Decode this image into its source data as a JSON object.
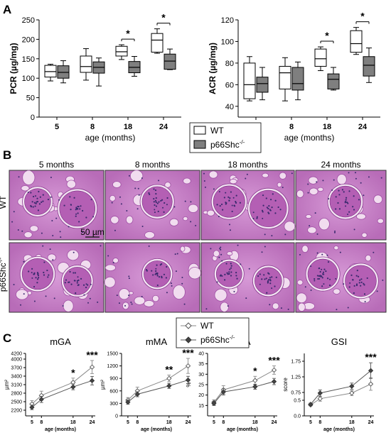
{
  "panels": {
    "a": "A",
    "b": "B",
    "c": "C"
  },
  "legend_a": {
    "wt": "WT",
    "ko": "p66Shc",
    "ko_sup": "-/-"
  },
  "legend_c": {
    "wt": "WT",
    "ko": "p66Shc",
    "ko_sup": "-/-"
  },
  "micrographs": {
    "columns": [
      "5 months",
      "8 months",
      "18 months",
      "24 months"
    ],
    "rows": [
      {
        "label": "WT",
        "sup": ""
      },
      {
        "label": "p66Shc",
        "sup": "-/-"
      }
    ],
    "scale_bar": "50 µm"
  },
  "colors": {
    "wt_fill": "#ffffff",
    "ko_fill": "#7f7f7f",
    "tissue": "#c47cc4",
    "nuclei": "#3a2a6e"
  },
  "chart_data": [
    {
      "type": "box",
      "id": "pcr",
      "ylabel": "PCR (µg/mg)",
      "xlabel": "age (months)",
      "categories": [
        "5",
        "8",
        "18",
        "24"
      ],
      "ylim": [
        0,
        250
      ],
      "yticks": [
        0,
        50,
        100,
        150,
        200,
        250
      ],
      "series": [
        {
          "name": "WT",
          "boxes": [
            {
              "min": 93,
              "q1": 103,
              "median": 117,
              "q3": 133,
              "max": 136
            },
            {
              "min": 95,
              "q1": 115,
              "median": 130,
              "q3": 157,
              "max": 176
            },
            {
              "min": 148,
              "q1": 157,
              "median": 168,
              "q3": 182,
              "max": 186
            },
            {
              "min": 164,
              "q1": 167,
              "median": 198,
              "q3": 215,
              "max": 227
            }
          ]
        },
        {
          "name": "p66Shc-/-",
          "boxes": [
            {
              "min": 88,
              "q1": 100,
              "median": 115,
              "q3": 132,
              "max": 145
            },
            {
              "min": 80,
              "q1": 113,
              "median": 128,
              "q3": 142,
              "max": 152
            },
            {
              "min": 105,
              "q1": 114,
              "median": 128,
              "q3": 143,
              "max": 156
            },
            {
              "min": 122,
              "q1": 123,
              "median": 144,
              "q3": 162,
              "max": 175
            }
          ]
        }
      ],
      "significance": [
        {
          "category": "18",
          "label": "*"
        },
        {
          "category": "24",
          "label": "*"
        }
      ]
    },
    {
      "type": "box",
      "id": "acr",
      "ylabel": "ACR (µg/mg)",
      "xlabel": "age (months)",
      "categories": [
        "5",
        "8",
        "18",
        "24"
      ],
      "ylim": [
        30,
        120
      ],
      "yticks": [
        40,
        60,
        80,
        100,
        120
      ],
      "series": [
        {
          "name": "WT",
          "boxes": [
            {
              "min": 45,
              "q1": 47,
              "median": 60,
              "q3": 80,
              "max": 86
            },
            {
              "min": 45,
              "q1": 56,
              "median": 71,
              "q3": 77,
              "max": 85
            },
            {
              "min": 73,
              "q1": 77,
              "median": 84,
              "q3": 93,
              "max": 95
            },
            {
              "min": 88,
              "q1": 90,
              "median": 98,
              "q3": 110,
              "max": 113
            }
          ]
        },
        {
          "name": "p66Shc-/-",
          "boxes": [
            {
              "min": 46,
              "q1": 53,
              "median": 61,
              "q3": 67,
              "max": 76
            },
            {
              "min": 46,
              "q1": 55,
              "median": 61,
              "q3": 76,
              "max": 81
            },
            {
              "min": 55,
              "q1": 56,
              "median": 65,
              "q3": 70,
              "max": 76
            },
            {
              "min": 62,
              "q1": 68,
              "median": 78,
              "q3": 86,
              "max": 94
            }
          ]
        }
      ],
      "significance": [
        {
          "category": "18",
          "label": "*"
        },
        {
          "category": "24",
          "label": "*"
        }
      ]
    },
    {
      "type": "line",
      "id": "mga",
      "title": "mGA",
      "ylabel": "µm²",
      "xlabel": "age (months)",
      "x": [
        5,
        8,
        18,
        24
      ],
      "xticks": [
        5,
        8,
        18,
        24
      ],
      "ylim": [
        2000,
        4200
      ],
      "yticks": [
        2200,
        2500,
        2800,
        3100,
        3400,
        3700,
        4000,
        4200
      ],
      "series": [
        {
          "name": "WT",
          "values": [
            2420,
            2720,
            3180,
            3720
          ],
          "err": [
            120,
            150,
            150,
            230
          ]
        },
        {
          "name": "p66Shc-/-",
          "values": [
            2300,
            2580,
            3020,
            3240
          ],
          "err": [
            80,
            110,
            100,
            150
          ]
        }
      ],
      "significance": [
        {
          "x": 18,
          "label": "*"
        },
        {
          "x": 24,
          "label": "***"
        }
      ]
    },
    {
      "type": "line",
      "id": "mma",
      "title": "mMA",
      "ylabel": "µm²",
      "xlabel": "age (months)",
      "x": [
        5,
        8,
        18,
        24
      ],
      "xticks": [
        5,
        8,
        18,
        24
      ],
      "ylim": [
        0,
        1500
      ],
      "yticks": [
        0,
        300,
        600,
        900,
        1200,
        1500
      ],
      "series": [
        {
          "name": "WT",
          "values": [
            380,
            600,
            900,
            1200
          ],
          "err": [
            60,
            90,
            80,
            180
          ]
        },
        {
          "name": "p66Shc-/-",
          "values": [
            330,
            520,
            720,
            860
          ],
          "err": [
            50,
            60,
            60,
            90
          ]
        }
      ],
      "significance": [
        {
          "x": 18,
          "label": "**"
        },
        {
          "x": 24,
          "label": "***"
        }
      ]
    },
    {
      "type": "line",
      "id": "fma",
      "title": "fMA",
      "ylabel": "%",
      "xlabel": "age (months)",
      "x": [
        5,
        8,
        18,
        24
      ],
      "xticks": [
        5,
        8,
        18,
        24
      ],
      "ylim": [
        10,
        40
      ],
      "yticks": [
        15,
        20,
        25,
        30,
        35,
        40
      ],
      "series": [
        {
          "name": "WT",
          "values": [
            16.5,
            22.5,
            27,
            32
          ],
          "err": [
            1.2,
            2.0,
            2.0,
            2.0
          ]
        },
        {
          "name": "p66Shc-/-",
          "values": [
            16,
            21.5,
            24,
            26.5
          ],
          "err": [
            1.0,
            1.5,
            1.2,
            1.5
          ]
        }
      ],
      "significance": [
        {
          "x": 18,
          "label": "*"
        },
        {
          "x": 24,
          "label": "***"
        }
      ]
    },
    {
      "type": "line",
      "id": "gsi",
      "title": "GSI",
      "ylabel": "score",
      "xlabel": "age (months)",
      "x": [
        5,
        8,
        18,
        24
      ],
      "xticks": [
        5,
        8,
        18,
        24
      ],
      "ylim": [
        0,
        2.0
      ],
      "yticks": [
        0.0,
        0.5,
        0.75,
        1.25,
        1.75
      ],
      "ytick_labels": [
        "0.0",
        "0.5",
        "0.75",
        "1.25",
        "1.75"
      ],
      "series": [
        {
          "name": "WT",
          "values": [
            0.35,
            0.55,
            0.73,
            1.02
          ],
          "err": [
            0.03,
            0.08,
            0.08,
            0.2
          ]
        },
        {
          "name": "p66Shc-/-",
          "values": [
            0.37,
            0.73,
            0.95,
            1.45
          ],
          "err": [
            0.04,
            0.1,
            0.1,
            0.25
          ]
        }
      ],
      "significance": [
        {
          "x": 24,
          "label": "***"
        }
      ]
    }
  ]
}
